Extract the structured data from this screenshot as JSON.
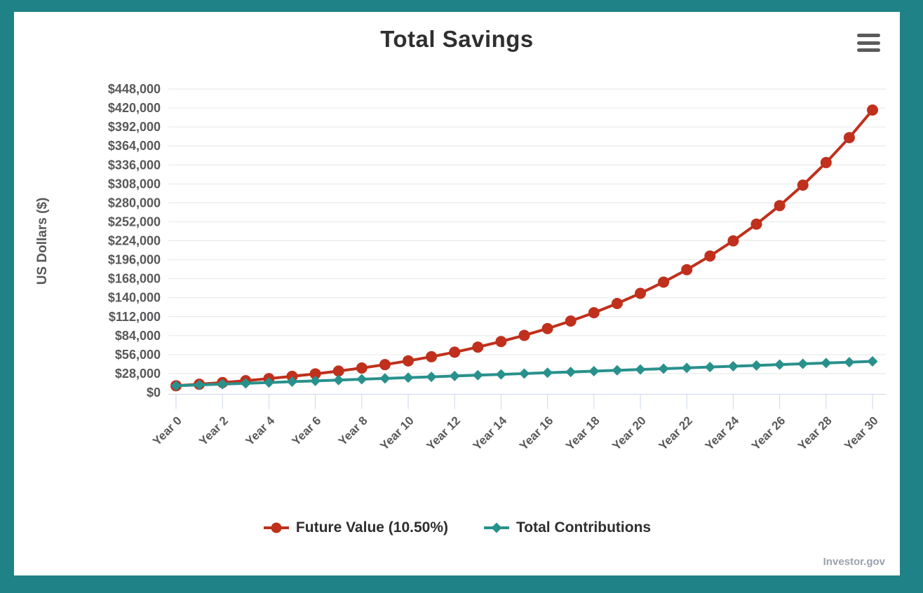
{
  "window": {
    "background_color": "#1f8287",
    "card_color": "#ffffff"
  },
  "chart": {
    "title": "Total Savings",
    "y_axis_title": "US Dollars ($)",
    "credits": "Investor.gov",
    "colors": {
      "future_value": "#c0301c",
      "total_contributions": "#28918c",
      "grid": "#e6e6e6",
      "axis": "#ccd6eb",
      "tick_label": "#58585a",
      "title_text": "#2f2f2f",
      "menu_icon": "#5a5a5a",
      "credits_text": "#9aa1ac"
    }
  },
  "chart_data": {
    "type": "line",
    "title": "Total Savings",
    "xlabel": "",
    "ylabel": "US Dollars ($)",
    "ylim": [
      0,
      448000
    ],
    "grid": "horizontal",
    "legend_position": "bottom",
    "x": [
      0,
      1,
      2,
      3,
      4,
      5,
      6,
      7,
      8,
      9,
      10,
      11,
      12,
      13,
      14,
      15,
      16,
      17,
      18,
      19,
      20,
      21,
      22,
      23,
      24,
      25,
      26,
      27,
      28,
      29,
      30
    ],
    "x_tick_labels": [
      "Year 0",
      "Year 2",
      "Year 4",
      "Year 6",
      "Year 8",
      "Year 10",
      "Year 12",
      "Year 14",
      "Year 16",
      "Year 18",
      "Year 20",
      "Year 22",
      "Year 24",
      "Year 26",
      "Year 28",
      "Year 30"
    ],
    "y_ticks": [
      0,
      28000,
      56000,
      84000,
      112000,
      140000,
      168000,
      196000,
      224000,
      252000,
      280000,
      308000,
      336000,
      364000,
      392000,
      420000,
      448000
    ],
    "y_tick_labels": [
      "$0",
      "$28,000",
      "$56,000",
      "$84,000",
      "$112,000",
      "$140,000",
      "$168,000",
      "$196,000",
      "$224,000",
      "$252,000",
      "$280,000",
      "$308,000",
      "$336,000",
      "$364,000",
      "$392,000",
      "$420,000",
      "$448,000"
    ],
    "series": [
      {
        "name": "Future Value (10.50%)",
        "color": "#c0301c",
        "marker": "circle",
        "values": [
          10000,
          12250,
          14736,
          17484,
          20519,
          23874,
          27581,
          31677,
          36203,
          41204,
          46730,
          52837,
          59585,
          67041,
          75281,
          84385,
          94446,
          105562,
          117846,
          131420,
          146419,
          162993,
          181308,
          201545,
          223907,
          248617,
          275922,
          306094,
          339434,
          376275,
          416983
        ]
      },
      {
        "name": "Total Contributions",
        "color": "#28918c",
        "marker": "diamond",
        "values": [
          10000,
          11200,
          12400,
          13600,
          14800,
          16000,
          17200,
          18400,
          19600,
          20800,
          22000,
          23200,
          24400,
          25600,
          26800,
          28000,
          29200,
          30400,
          31600,
          32800,
          34000,
          35200,
          36400,
          37600,
          38800,
          40000,
          41200,
          42400,
          43600,
          44800,
          46000
        ]
      }
    ]
  }
}
